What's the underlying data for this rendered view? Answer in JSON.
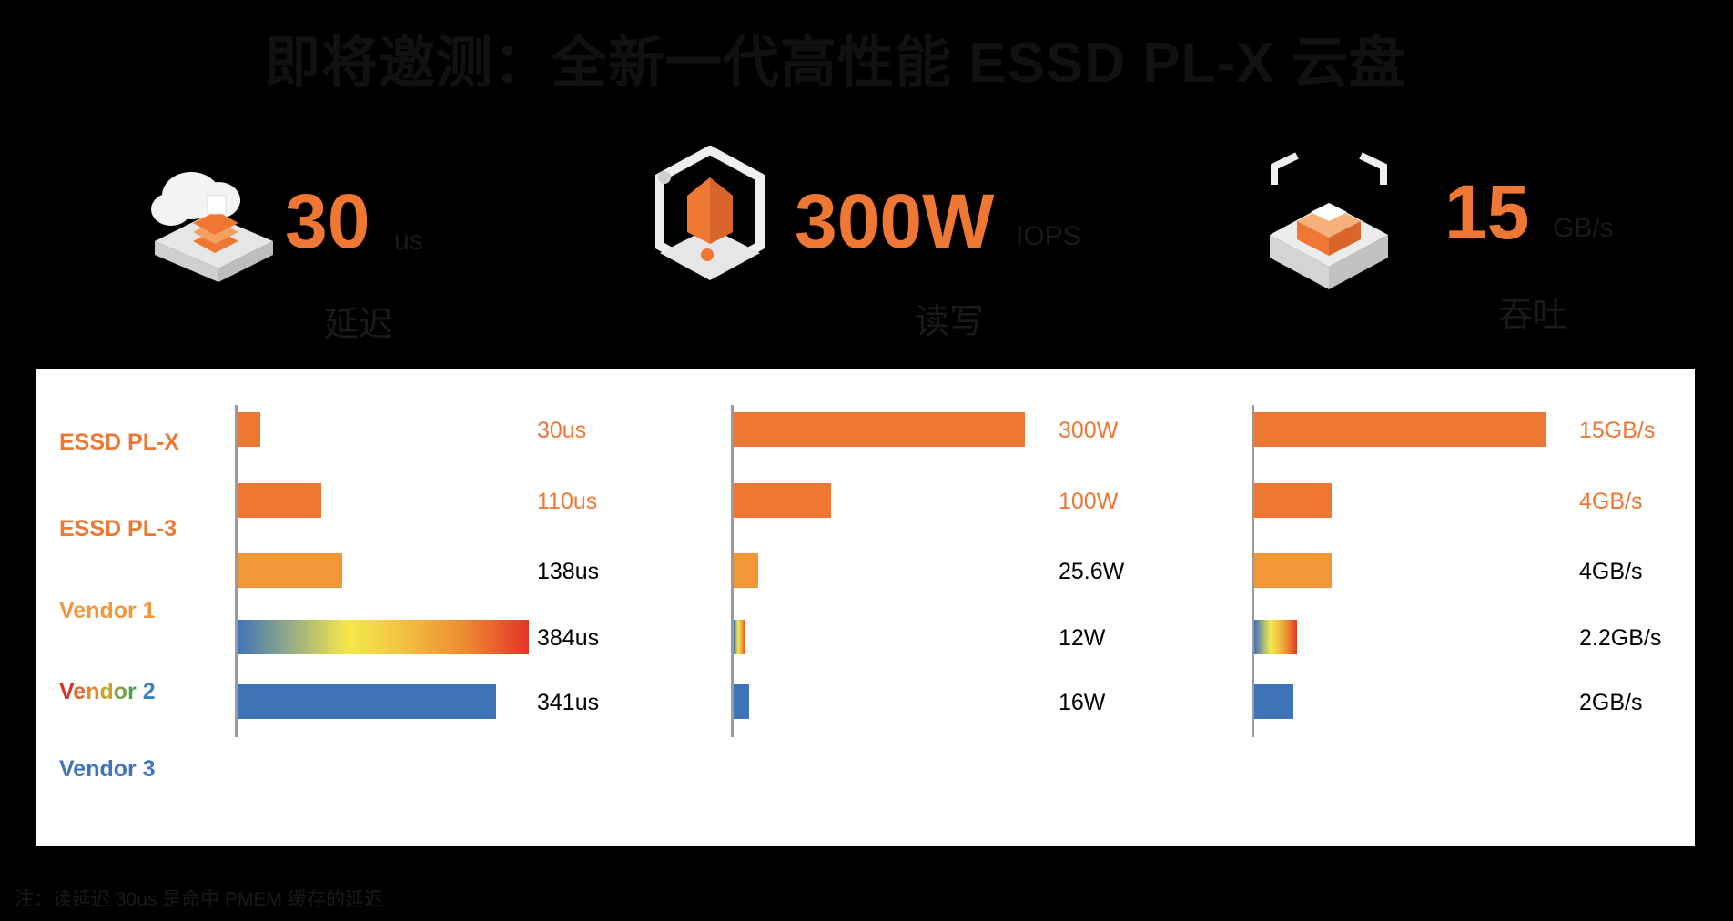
{
  "title": "即将邀测：全新一代高性能 ESSD PL-X 云盘",
  "stats": [
    {
      "value": "30",
      "unit": "us",
      "caption": "延迟",
      "icon": "cloud-server-icon"
    },
    {
      "value": "300W",
      "unit": "IOPS",
      "caption": "读写",
      "icon": "hexagon-house-icon"
    },
    {
      "value": "15",
      "unit": "GB/s",
      "caption": "吞吐",
      "icon": "cube-chip-icon"
    }
  ],
  "chart_data": {
    "type": "bar",
    "orientation": "horizontal",
    "categories": [
      "ESSD PL-X",
      "ESSD PL-3",
      "Vendor 1",
      "Vendor 2",
      "Vendor 3"
    ],
    "category_colors": [
      "#ee7733",
      "#ee7733",
      "#f2963a",
      "rainbow",
      "#3f74b9"
    ],
    "panels": [
      {
        "metric": "latency",
        "values": [
          30,
          110,
          138,
          384,
          341
        ],
        "labels": [
          "30us",
          "110us",
          "138us",
          "384us",
          "341us"
        ],
        "max": 384
      },
      {
        "metric": "iops",
        "values": [
          300,
          100,
          25.6,
          12,
          16
        ],
        "labels": [
          "300W",
          "100W",
          "25.6W",
          "12W",
          "16W"
        ],
        "max": 300
      },
      {
        "metric": "throughput",
        "values": [
          15,
          4,
          4,
          2.2,
          2
        ],
        "labels": [
          "15GB/s",
          "4GB/s",
          "4GB/s",
          "2.2GB/s",
          "2GB/s"
        ],
        "max": 15
      }
    ],
    "highlight_label_color": "#ee7733"
  },
  "footnote": "注：读延迟 30us 是命中 PMEM 缓存的延迟"
}
